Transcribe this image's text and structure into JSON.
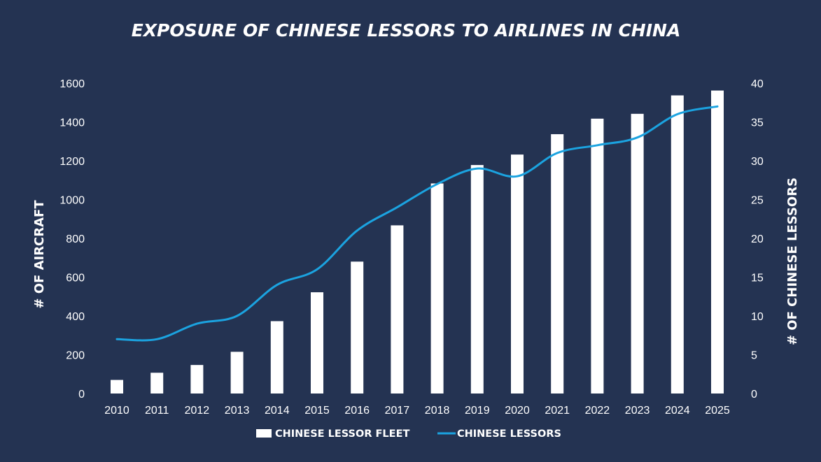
{
  "chart_data": {
    "type": "bar",
    "title": "EXPOSURE OF CHINESE LESSORS TO AIRLINES IN CHINA",
    "categories": [
      "2010",
      "2011",
      "2012",
      "2013",
      "2014",
      "2015",
      "2016",
      "2017",
      "2018",
      "2019",
      "2020",
      "2021",
      "2022",
      "2023",
      "2024",
      "2025"
    ],
    "series": [
      {
        "name": "CHINESE LESSOR FLEET",
        "type": "bar",
        "axis": "left",
        "color": "#ffffff",
        "values": [
          70,
          107,
          147,
          215,
          373,
          522,
          680,
          867,
          1083,
          1178,
          1232,
          1337,
          1417,
          1442,
          1537,
          1562
        ]
      },
      {
        "name": "CHINESE LESSORS",
        "type": "line",
        "axis": "right",
        "color": "#1ba3e0",
        "values": [
          7,
          7,
          9,
          10,
          14,
          16,
          21,
          24,
          27,
          29,
          28,
          31,
          32,
          33,
          36,
          37
        ]
      }
    ],
    "ylabel": "# OF AIRCRAFT",
    "y2label": "# OF CHINESE LESSORS",
    "ylim": [
      0,
      1600
    ],
    "y2lim": [
      0,
      40
    ],
    "yticks": [
      "0",
      "200",
      "400",
      "600",
      "800",
      "1000",
      "1200",
      "1400",
      "1600"
    ],
    "y2ticks": [
      "0",
      "5",
      "10",
      "15",
      "20",
      "25",
      "30",
      "35",
      "40"
    ],
    "grid": false,
    "legend_position": "bottom"
  },
  "colors": {
    "background": "#243352",
    "bar": "#ffffff",
    "line": "#1ba3e0",
    "text": "#ffffff"
  }
}
